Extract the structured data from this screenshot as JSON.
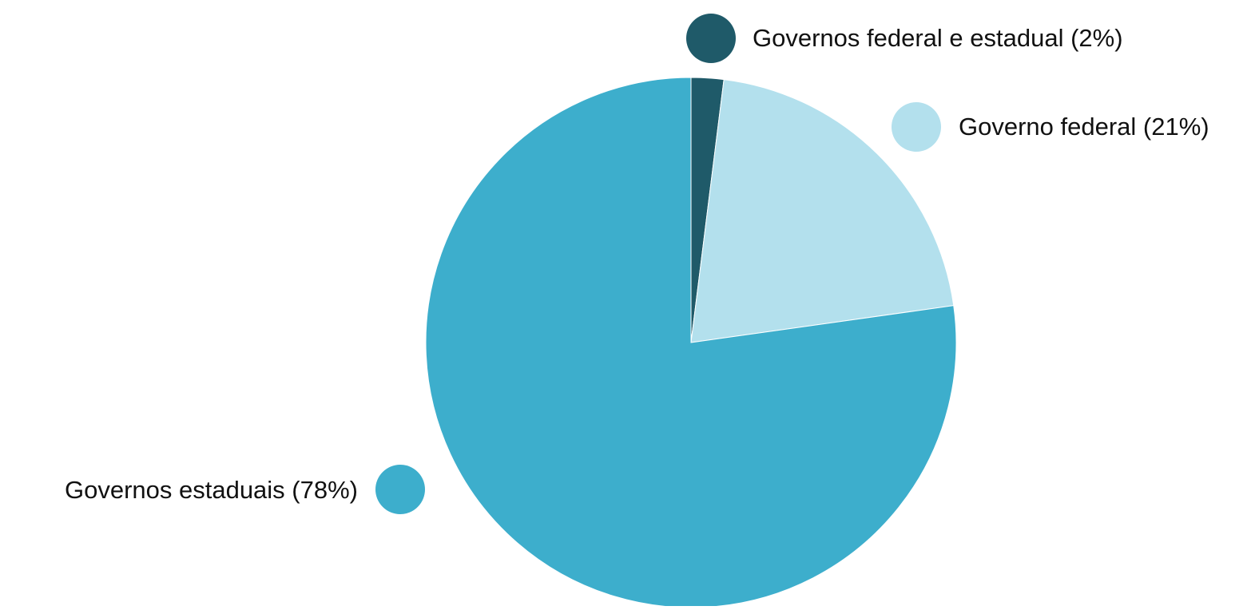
{
  "chart_data": {
    "type": "pie",
    "title": "",
    "slices": [
      {
        "label": "Governos federal e estadual (2%)",
        "value": 2,
        "color": "#1f5a69"
      },
      {
        "label": "Governo federal (21%)",
        "value": 21,
        "color": "#b3e0ed"
      },
      {
        "label": "Governos estaduais (78%)",
        "value": 78,
        "color": "#3daecc"
      }
    ],
    "start_angle": "12 o'clock",
    "direction": "clockwise",
    "legend": "callout labels beside each slice"
  }
}
